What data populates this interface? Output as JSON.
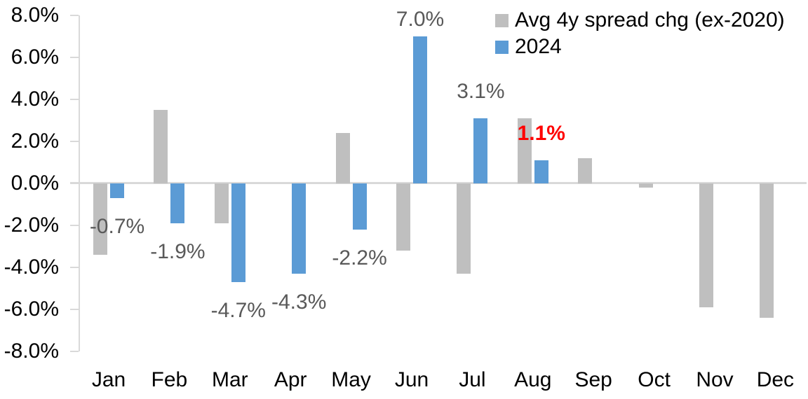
{
  "chart_data": {
    "type": "bar",
    "title": "",
    "categories": [
      "Jan",
      "Feb",
      "Mar",
      "Apr",
      "May",
      "Jun",
      "Jul",
      "Aug",
      "Sep",
      "Oct",
      "Nov",
      "Dec"
    ],
    "series": [
      {
        "name": "Avg 4y spread chg (ex-2020)",
        "color": "#BFBFBF",
        "values": [
          -3.4,
          3.5,
          -1.9,
          0.0,
          2.4,
          -3.2,
          -4.3,
          3.1,
          1.2,
          -0.2,
          -5.9,
          -6.4
        ]
      },
      {
        "name": "2024",
        "color": "#5B9BD5",
        "values": [
          -0.7,
          -1.9,
          -4.7,
          -4.3,
          -2.2,
          7.0,
          3.1,
          1.1,
          null,
          null,
          null,
          null
        ]
      }
    ],
    "data_labels": {
      "series": "2024",
      "default_color": "#595959",
      "labels": [
        "-0.7%",
        "-1.9%",
        "-4.7%",
        "-4.3%",
        "-2.2%",
        "7.0%",
        "3.1%",
        "1.1%",
        null,
        null,
        null,
        null
      ],
      "highlight": {
        "index": 7,
        "color": "#FF0000",
        "bold": true
      }
    },
    "ylim": [
      -8,
      8
    ],
    "ytick_step": 2,
    "ytick_labels": [
      "8.0%",
      "6.0%",
      "4.0%",
      "2.0%",
      "0.0%",
      "-2.0%",
      "-4.0%",
      "-6.0%",
      "-8.0%"
    ],
    "legend": {
      "position": "top-right",
      "items": [
        {
          "label": "Avg 4y spread chg (ex-2020)",
          "color": "#BFBFBF"
        },
        {
          "label": "2024",
          "color": "#5B9BD5"
        }
      ]
    },
    "grid": false,
    "colors": {
      "axis": "#D9D9D9",
      "tick_label": "#000000",
      "month_label": "#000000",
      "data_label": "#595959",
      "highlight_label": "#FF0000",
      "background": "#FFFFFF"
    }
  }
}
